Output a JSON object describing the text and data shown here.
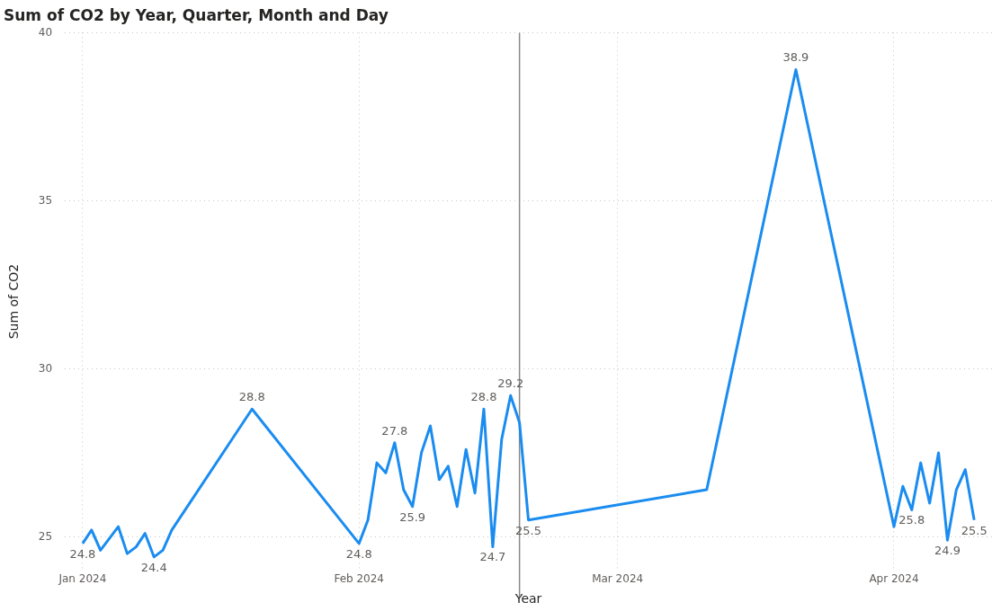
{
  "chart_data": {
    "type": "line",
    "title": "Sum of CO2 by Year, Quarter, Month and Day",
    "xlabel": "Year",
    "ylabel": "Sum of CO2",
    "x": [
      "2024-01-01",
      "2024-01-02",
      "2024-01-03",
      "2024-01-05",
      "2024-01-06",
      "2024-01-07",
      "2024-01-08",
      "2024-01-09",
      "2024-01-10",
      "2024-01-11",
      "2024-01-20",
      "2024-02-01",
      "2024-02-02",
      "2024-02-03",
      "2024-02-04",
      "2024-02-05",
      "2024-02-06",
      "2024-02-07",
      "2024-02-08",
      "2024-02-09",
      "2024-02-10",
      "2024-02-11",
      "2024-02-12",
      "2024-02-13",
      "2024-02-14",
      "2024-02-15",
      "2024-02-16",
      "2024-02-17",
      "2024-02-18",
      "2024-02-19",
      "2024-02-20",
      "2024-03-11",
      "2024-03-21",
      "2024-04-01",
      "2024-04-02",
      "2024-04-03",
      "2024-04-04",
      "2024-04-05",
      "2024-04-06",
      "2024-04-07",
      "2024-04-08",
      "2024-04-09",
      "2024-04-10"
    ],
    "series": [
      {
        "color": "#1a8cf0",
        "values": [
          24.8,
          25.2,
          24.6,
          25.3,
          24.5,
          24.7,
          25.1,
          24.4,
          24.6,
          25.2,
          28.8,
          24.8,
          25.5,
          27.2,
          26.9,
          27.8,
          26.4,
          25.9,
          27.5,
          28.3,
          26.7,
          27.1,
          25.9,
          27.6,
          26.3,
          28.8,
          24.7,
          27.9,
          29.2,
          28.4,
          25.5,
          26.4,
          38.9,
          25.3,
          26.5,
          25.8,
          27.2,
          26.0,
          27.5,
          24.9,
          26.4,
          27.0,
          25.5
        ],
        "value_labels": [
          "24.8",
          null,
          null,
          null,
          null,
          null,
          null,
          "24.4",
          null,
          null,
          "28.8",
          "24.8",
          null,
          null,
          null,
          "27.8",
          null,
          "25.9",
          null,
          null,
          null,
          null,
          null,
          null,
          null,
          "28.8",
          "24.7",
          null,
          "29.2",
          null,
          "25.5",
          null,
          "38.9",
          null,
          null,
          "25.8",
          null,
          null,
          null,
          "24.9",
          null,
          null,
          "25.5"
        ]
      }
    ],
    "xlim": [
      "2023-12-30",
      "2024-04-12"
    ],
    "xticks": [
      {
        "value": "2024-01-01",
        "label": "Jan 2024"
      },
      {
        "value": "2024-02-01",
        "label": "Feb 2024"
      },
      {
        "value": "2024-03-01",
        "label": "Mar 2024"
      },
      {
        "value": "2024-04-01",
        "label": "Apr 2024"
      }
    ],
    "ylim": [
      24,
      40
    ],
    "yticks": [
      25,
      30,
      35,
      40
    ],
    "grid": true,
    "legend": false,
    "marker": "none",
    "line_style": "solid",
    "ref_lines": [
      {
        "axis": "x",
        "value": "2024-02-19",
        "color": "#8a8a8a"
      }
    ]
  }
}
